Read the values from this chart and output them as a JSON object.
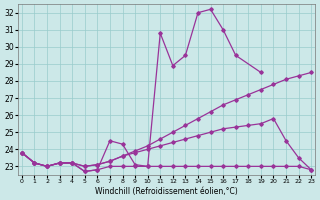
{
  "color": "#993399",
  "bg_color": "#cce8e8",
  "grid_color": "#99cccc",
  "xlabel": "Windchill (Refroidissement éolien,°C)",
  "ylim": [
    22.5,
    32.5
  ],
  "xlim": [
    -0.3,
    23.3
  ],
  "yticks": [
    23,
    24,
    25,
    26,
    27,
    28,
    29,
    30,
    31,
    32
  ],
  "xticks": [
    0,
    1,
    2,
    3,
    4,
    5,
    6,
    7,
    8,
    9,
    10,
    11,
    12,
    13,
    14,
    15,
    16,
    17,
    18,
    19,
    20,
    21,
    22,
    23
  ],
  "s1_x": [
    0,
    1,
    2,
    3,
    4,
    5,
    6,
    7,
    8,
    9,
    10,
    11,
    12,
    13,
    14,
    15,
    16,
    17,
    19
  ],
  "s1_y": [
    23.8,
    23.2,
    23.0,
    23.2,
    23.2,
    22.7,
    22.8,
    24.5,
    24.3,
    23.1,
    23.0,
    30.8,
    28.9,
    29.5,
    32.0,
    32.2,
    31.0,
    29.5,
    28.5
  ],
  "s2_x": [
    0,
    1,
    2,
    3,
    4,
    5,
    6,
    7,
    8,
    9,
    10,
    11,
    12,
    13,
    14,
    15,
    16,
    17,
    18,
    19,
    20,
    21,
    22,
    23
  ],
  "s2_y": [
    23.8,
    23.2,
    23.0,
    23.2,
    23.2,
    23.0,
    23.1,
    23.3,
    23.6,
    23.9,
    24.2,
    24.6,
    25.0,
    25.4,
    25.8,
    26.2,
    26.6,
    26.9,
    27.2,
    27.5,
    27.8,
    28.1,
    28.3,
    28.5
  ],
  "s3_x": [
    0,
    1,
    2,
    3,
    4,
    5,
    6,
    7,
    8,
    9,
    10,
    11,
    12,
    13,
    14,
    15,
    16,
    17,
    18,
    19,
    20,
    21,
    22,
    23
  ],
  "s3_y": [
    23.8,
    23.2,
    23.0,
    23.2,
    23.2,
    23.0,
    23.1,
    23.3,
    23.6,
    23.8,
    24.0,
    24.2,
    24.4,
    24.6,
    24.8,
    25.0,
    25.2,
    25.3,
    25.4,
    25.5,
    25.8,
    24.5,
    23.5,
    22.8
  ],
  "s4_x": [
    0,
    1,
    2,
    3,
    4,
    5,
    6,
    7,
    8,
    9,
    10,
    11,
    12,
    13,
    14,
    15,
    16,
    17,
    18,
    19,
    20,
    21,
    22,
    23
  ],
  "s4_y": [
    23.8,
    23.2,
    23.0,
    23.2,
    23.2,
    22.7,
    22.8,
    23.0,
    23.0,
    23.0,
    23.0,
    23.0,
    23.0,
    23.0,
    23.0,
    23.0,
    23.0,
    23.0,
    23.0,
    23.0,
    23.0,
    23.0,
    23.0,
    22.8
  ]
}
